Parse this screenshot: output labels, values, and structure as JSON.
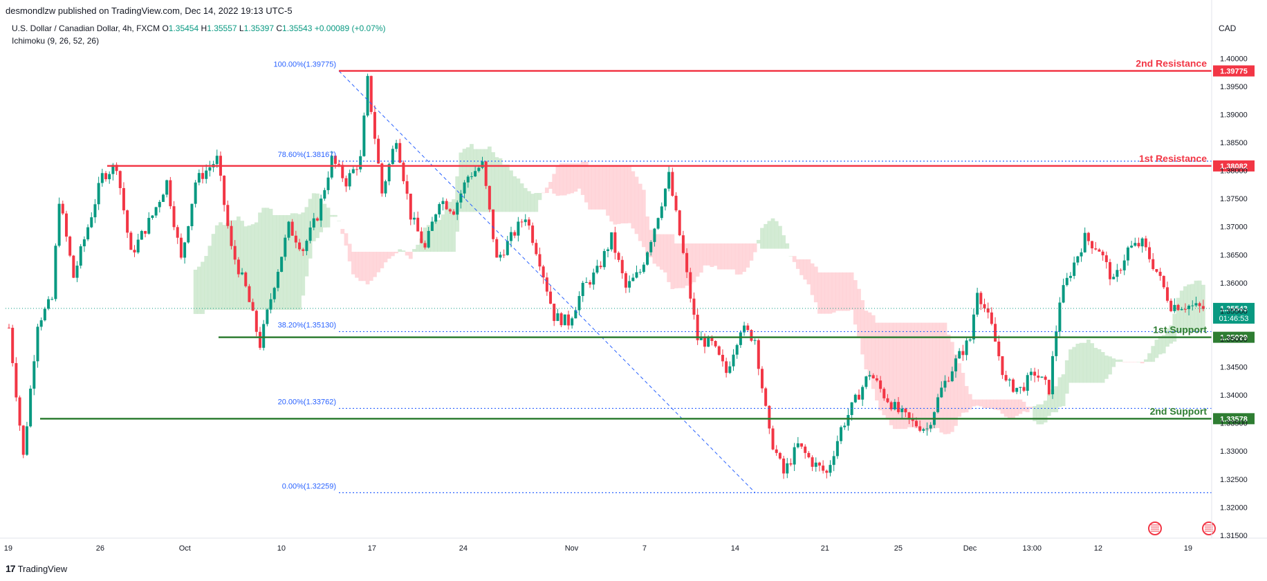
{
  "header": {
    "publisher": "desmondlzw published on TradingView.com, Dec 14, 2022 19:13 UTC-5",
    "symbol": "U.S. Dollar / Canadian Dollar, 4h, FXCM",
    "open_label": "O",
    "open": "1.35454",
    "high_label": "H",
    "high": "1.35557",
    "low_label": "L",
    "low": "1.35397",
    "close_label": "C",
    "close": "1.35543",
    "change": "+0.00089 (+0.07%)",
    "indicator": "Ichimoku (9, 26, 52, 26)",
    "currency": "CAD"
  },
  "footer": {
    "brand": "TradingView",
    "logo": "17"
  },
  "colors": {
    "bull": "#089981",
    "bear": "#f23645",
    "resistance": "#f23645",
    "support": "#2e7d32",
    "fib": "#2962ff",
    "cloud_bull": "#c8e6c9",
    "cloud_bear": "#ffcdd2"
  },
  "chart_data": {
    "type": "candlestick",
    "title": "U.S. Dollar / Canadian Dollar, 4h, FXCM",
    "ylim": [
      1.3145,
      1.4025
    ],
    "y_ticks": [
      "1.40000",
      "1.39500",
      "1.39000",
      "1.38500",
      "1.38000",
      "1.37500",
      "1.37000",
      "1.36500",
      "1.36000",
      "1.35500",
      "1.35000",
      "1.34500",
      "1.34000",
      "1.33500",
      "1.33000",
      "1.32500",
      "1.32000",
      "1.31500"
    ],
    "x_ticks": [
      "19",
      "26",
      "Oct",
      "10",
      "17",
      "24",
      "Nov",
      "7",
      "14",
      "21",
      "25",
      "Dec",
      "13:00",
      "12",
      "19"
    ],
    "x_range": [
      "Sep 19, 2022",
      "Dec 20, 2022"
    ],
    "key_levels": [
      {
        "label": "2nd Resistance",
        "value": "1.39775",
        "kind": "resistance",
        "from": "Oct 13"
      },
      {
        "label": "1st Resistance",
        "value": "1.38082",
        "kind": "resistance",
        "from": "Sep 26"
      },
      {
        "label": "1st.Support",
        "value": "1.35029",
        "kind": "support",
        "from": "Oct 4"
      },
      {
        "label": "2nd Support",
        "value": "1.33578",
        "kind": "support",
        "from": "Sep 21"
      }
    ],
    "fibonacci": [
      {
        "label": "100.00%(1.39775)",
        "value": 1.39775
      },
      {
        "label": "78.60%(1.38167)",
        "value": 1.38167
      },
      {
        "label": "38.20%(1.35130)",
        "value": 1.3513
      },
      {
        "label": "20.00%(1.33762)",
        "value": 1.33762
      },
      {
        "label": "0.00%(1.32259)",
        "value": 1.32259
      }
    ],
    "last_price": {
      "value": "1.35543",
      "countdown": "01:46:53"
    },
    "price_path": [
      [
        0,
        1.352
      ],
      [
        4,
        1.329
      ],
      [
        8,
        1.353
      ],
      [
        12,
        1.357
      ],
      [
        14,
        1.375
      ],
      [
        18,
        1.361
      ],
      [
        22,
        1.37
      ],
      [
        26,
        1.379
      ],
      [
        30,
        1.381
      ],
      [
        34,
        1.365
      ],
      [
        40,
        1.372
      ],
      [
        44,
        1.378
      ],
      [
        48,
        1.364
      ],
      [
        52,
        1.378
      ],
      [
        58,
        1.382
      ],
      [
        62,
        1.366
      ],
      [
        66,
        1.359
      ],
      [
        70,
        1.349
      ],
      [
        74,
        1.36
      ],
      [
        78,
        1.37
      ],
      [
        82,
        1.366
      ],
      [
        86,
        1.372
      ],
      [
        90,
        1.382
      ],
      [
        94,
        1.378
      ],
      [
        98,
        1.382
      ],
      [
        100,
        1.396
      ],
      [
        104,
        1.376
      ],
      [
        108,
        1.386
      ],
      [
        112,
        1.372
      ],
      [
        116,
        1.366
      ],
      [
        120,
        1.375
      ],
      [
        124,
        1.373
      ],
      [
        128,
        1.379
      ],
      [
        132,
        1.381
      ],
      [
        136,
        1.364
      ],
      [
        140,
        1.368
      ],
      [
        144,
        1.372
      ],
      [
        148,
        1.364
      ],
      [
        152,
        1.354
      ],
      [
        156,
        1.353
      ],
      [
        160,
        1.359
      ],
      [
        164,
        1.362
      ],
      [
        168,
        1.368
      ],
      [
        172,
        1.359
      ],
      [
        176,
        1.362
      ],
      [
        180,
        1.37
      ],
      [
        184,
        1.379
      ],
      [
        188,
        1.365
      ],
      [
        192,
        1.35
      ],
      [
        196,
        1.349
      ],
      [
        200,
        1.344
      ],
      [
        204,
        1.352
      ],
      [
        208,
        1.35
      ],
      [
        212,
        1.333
      ],
      [
        216,
        1.326
      ],
      [
        220,
        1.331
      ],
      [
        224,
        1.328
      ],
      [
        228,
        1.326
      ],
      [
        232,
        1.334
      ],
      [
        236,
        1.339
      ],
      [
        240,
        1.344
      ],
      [
        244,
        1.34
      ],
      [
        248,
        1.337
      ],
      [
        252,
        1.335
      ],
      [
        256,
        1.334
      ],
      [
        260,
        1.341
      ],
      [
        264,
        1.346
      ],
      [
        268,
        1.35
      ],
      [
        270,
        1.359
      ],
      [
        274,
        1.352
      ],
      [
        278,
        1.342
      ],
      [
        282,
        1.341
      ],
      [
        286,
        1.344
      ],
      [
        290,
        1.341
      ],
      [
        293,
        1.357
      ],
      [
        296,
        1.362
      ],
      [
        300,
        1.368
      ],
      [
        304,
        1.366
      ],
      [
        308,
        1.36
      ],
      [
        312,
        1.366
      ],
      [
        316,
        1.367
      ],
      [
        320,
        1.362
      ],
      [
        324,
        1.356
      ],
      [
        328,
        1.356
      ],
      [
        333,
        1.3554
      ]
    ]
  }
}
